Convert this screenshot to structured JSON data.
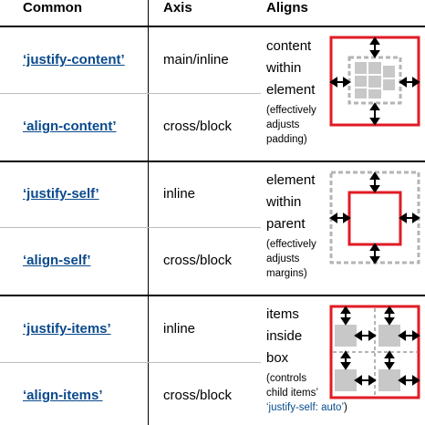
{
  "headers": {
    "common": "Common",
    "axis": "Axis",
    "aligns": "Aligns"
  },
  "groups": [
    {
      "rows": [
        {
          "property": "‘justify-content’",
          "axis": "main/inline"
        },
        {
          "property": "‘align-content’",
          "axis": "cross/block"
        }
      ],
      "desc_lines": [
        "content",
        "within",
        "element"
      ],
      "note": "(effectively adjusts padding)",
      "diagram_icon": "content-alignment-diagram"
    },
    {
      "rows": [
        {
          "property": "‘justify-self’",
          "axis": "inline"
        },
        {
          "property": "‘align-self’",
          "axis": "cross/block"
        }
      ],
      "desc_lines": [
        "element",
        "within",
        "parent"
      ],
      "note": "(effectively adjusts margins)",
      "diagram_icon": "self-alignment-diagram"
    },
    {
      "rows": [
        {
          "property": "‘justify-items’",
          "axis": "inline"
        },
        {
          "property": "‘align-items’",
          "axis": "cross/block"
        }
      ],
      "desc_lines": [
        "items",
        "inside",
        "box"
      ],
      "note": "(controls child items’",
      "note_code": "‘justify-self: auto’",
      "note_end": ")",
      "diagram_icon": "items-alignment-diagram"
    }
  ],
  "colors": {
    "link": "#0a4a8c",
    "frame": "#e01b24",
    "dashed": "#b4b4b4",
    "block": "#c8c8c8"
  }
}
